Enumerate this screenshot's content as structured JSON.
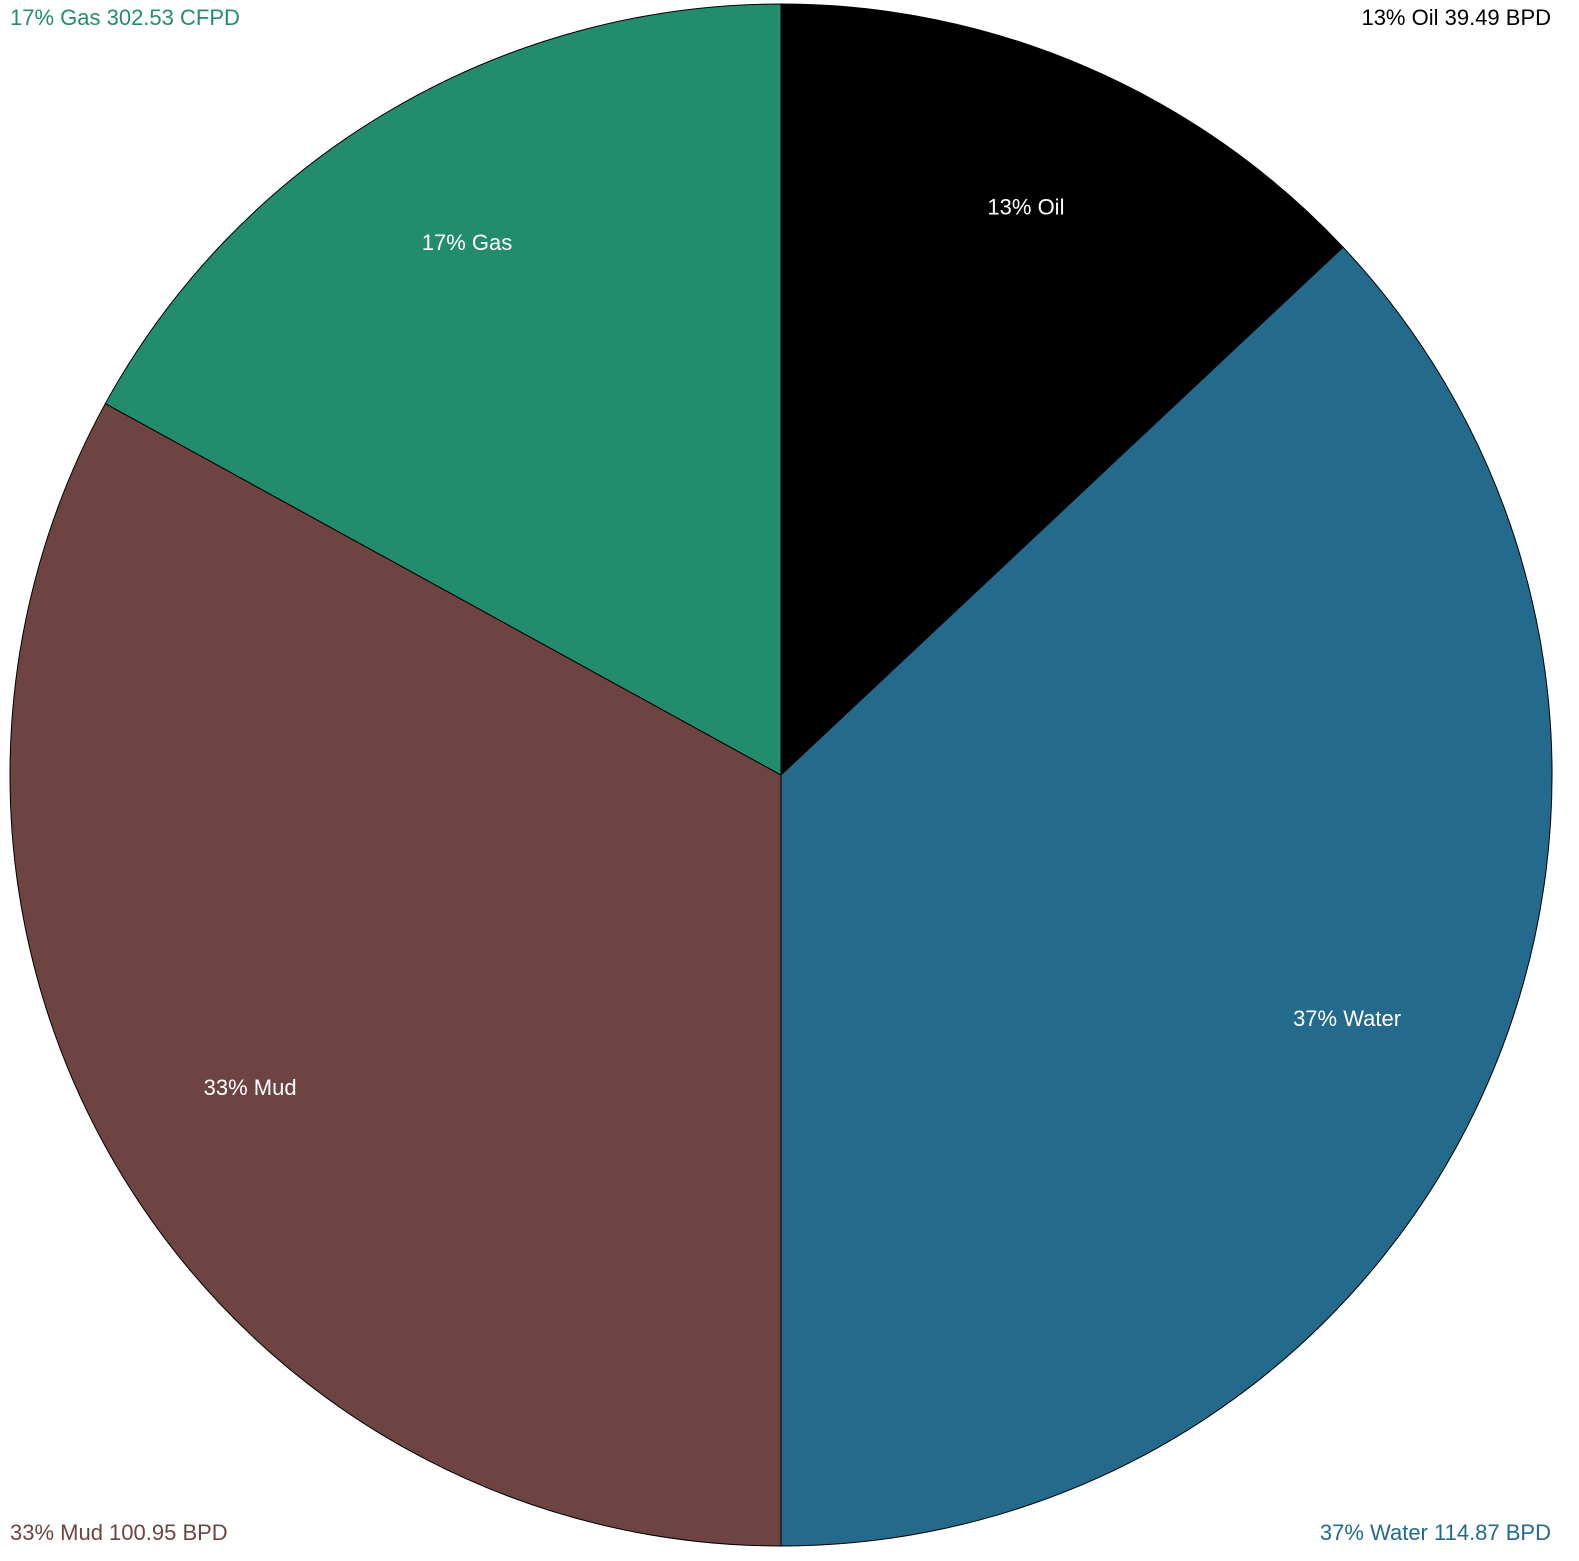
{
  "chart_data": {
    "type": "pie",
    "categories": [
      "Oil",
      "Water",
      "Mud",
      "Gas"
    ],
    "values": [
      13,
      37,
      33,
      17
    ],
    "value_labels": [
      "13% Oil",
      "37% Water",
      "33% Mud",
      "17% Gas"
    ],
    "colors": [
      "#000000",
      "#236a8c",
      "#6e4442",
      "#228c6c"
    ],
    "corner_labels": [
      "13% Oil 39.49 BPD",
      "37% Water 114.87 BPD",
      "33% Mud 100.95 BPD",
      "17% Gas 302.53 CFPD"
    ]
  }
}
